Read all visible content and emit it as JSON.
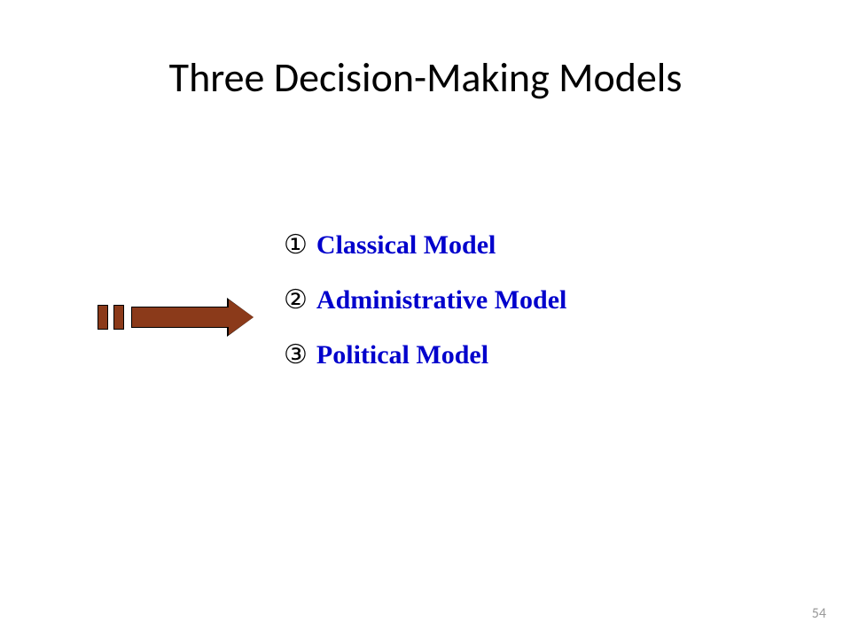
{
  "title": "Three Decision-Making Models",
  "items": [
    {
      "bullet": "①",
      "label": "Classical Model"
    },
    {
      "bullet": "②",
      "label": "Administrative Model"
    },
    {
      "bullet": "③",
      "label": "Political Model"
    }
  ],
  "arrow": {
    "blocks": 2,
    "block_color": "#8b3a1a",
    "shaft_color": "#8b3a1a",
    "border_color": "#000000"
  },
  "page_number": "54",
  "colors": {
    "title": "#000000",
    "bullet": "#000000",
    "item_text": "#0000cc",
    "background": "#ffffff",
    "page_number": "#999999"
  },
  "fonts": {
    "title_family": "Calibri",
    "title_size_pt": 40,
    "item_family": "Times New Roman",
    "item_size_pt": 24,
    "item_weight": "bold"
  }
}
